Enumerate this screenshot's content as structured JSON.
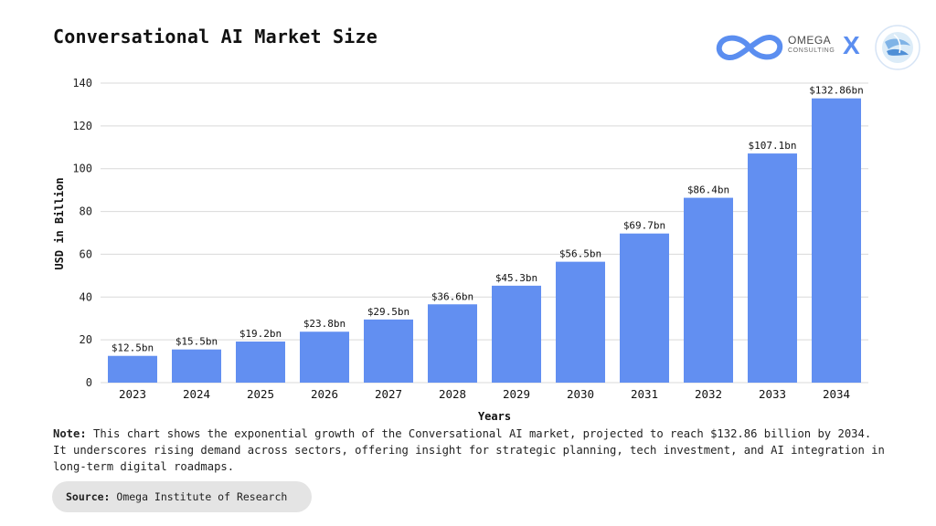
{
  "title": "Conversational AI Market Size",
  "brand": {
    "name": "OMEGA",
    "subtitle": "CONSULTING",
    "separator": "X",
    "accent_color": "#5b8ef0"
  },
  "chart_data": {
    "type": "bar",
    "title": "Conversational AI Market Size",
    "xlabel": "Years",
    "ylabel": "USD in Billion",
    "ylim": [
      0,
      140
    ],
    "yticks": [
      0,
      20,
      40,
      60,
      80,
      100,
      120,
      140
    ],
    "grid": true,
    "bar_color": "#628ff1",
    "categories": [
      "2023",
      "2024",
      "2025",
      "2026",
      "2027",
      "2028",
      "2029",
      "2030",
      "2031",
      "2032",
      "2033",
      "2034"
    ],
    "values": [
      12.5,
      15.5,
      19.2,
      23.8,
      29.5,
      36.6,
      45.3,
      56.5,
      69.7,
      86.4,
      107.1,
      132.86
    ],
    "data_labels": [
      "$12.5bn",
      "$15.5bn",
      "$19.2bn",
      "$23.8bn",
      "$29.5bn",
      "$36.6bn",
      "$45.3bn",
      "$56.5bn",
      "$69.7bn",
      "$86.4bn",
      "$107.1bn",
      "$132.86bn"
    ]
  },
  "note": {
    "label": "Note:",
    "text": " This chart shows the exponential growth of the Conversational AI market, projected to reach $132.86 billion by 2034. It underscores rising demand across sectors, offering insight for strategic planning, tech investment, and AI integration in long-term digital roadmaps."
  },
  "source": {
    "label": "Source:",
    "text": " Omega Institute of Research"
  }
}
